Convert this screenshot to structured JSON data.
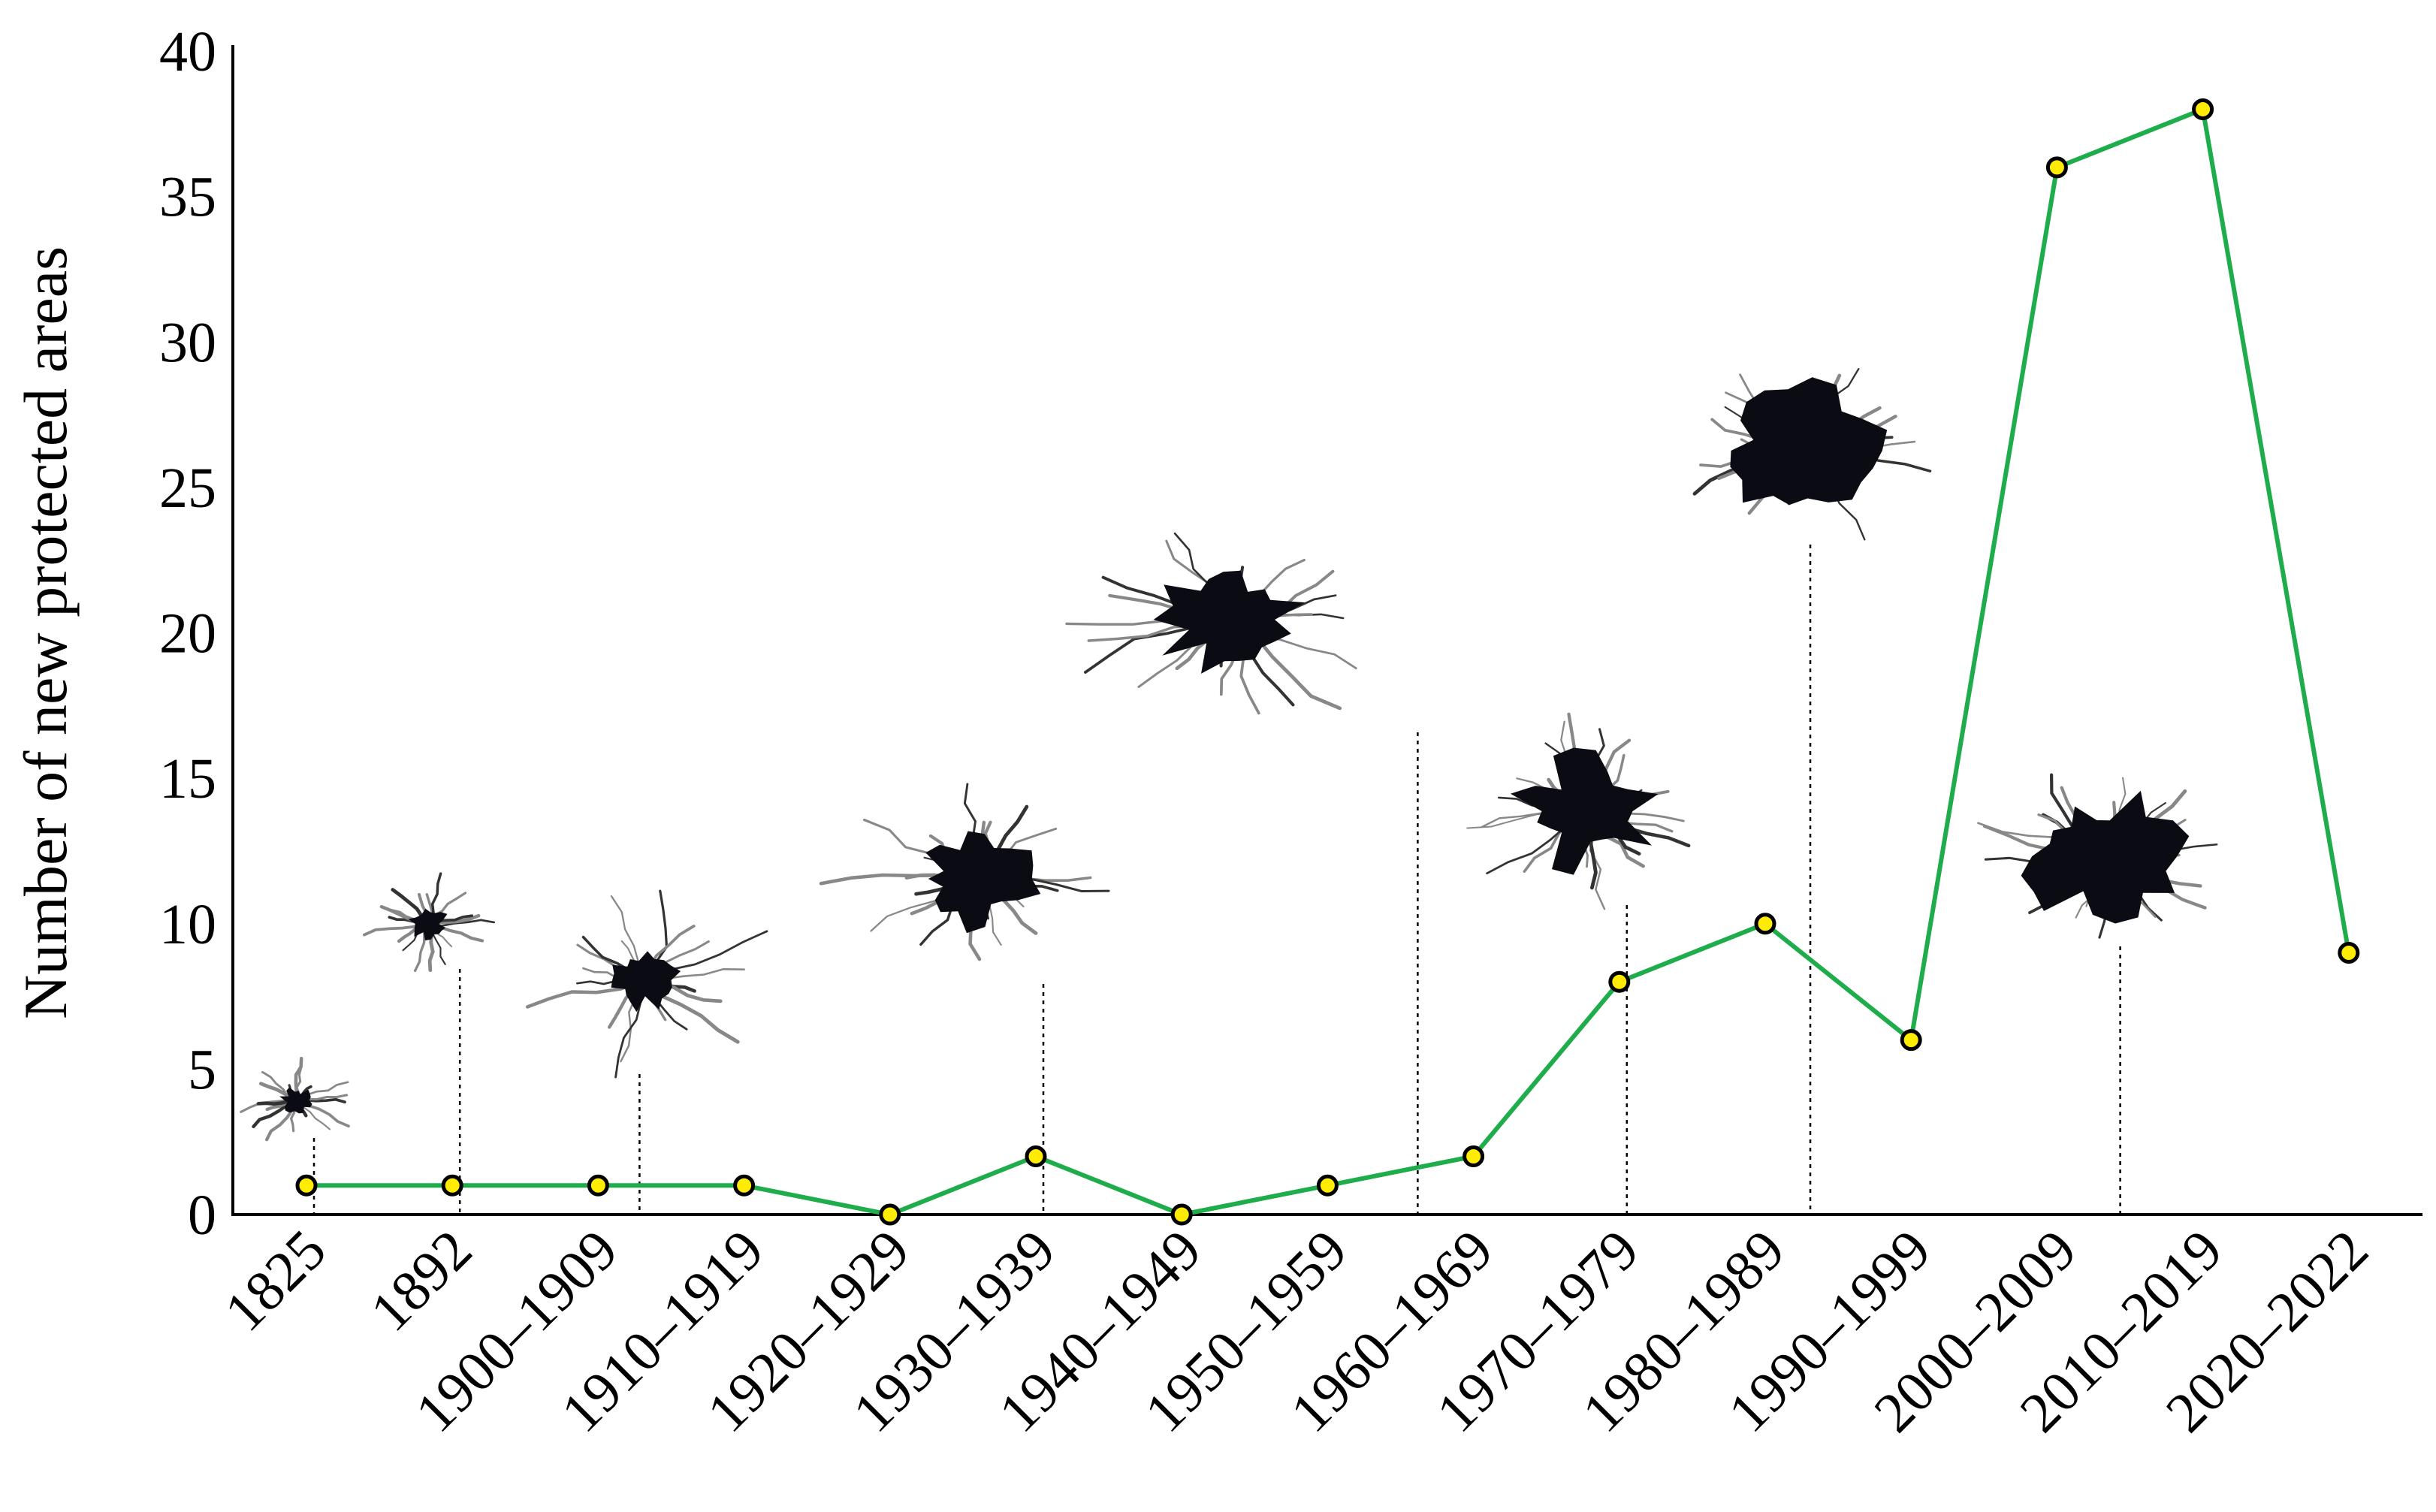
{
  "chart_data": {
    "type": "line",
    "title": "",
    "xlabel": "",
    "ylabel": "Number of new protected areas",
    "categories": [
      "1825",
      "1892",
      "1900–1909",
      "1910–1919",
      "1920–1929",
      "1930–1939",
      "1940–1949",
      "1950–1959",
      "1960–1969",
      "1970–1979",
      "1980–1989",
      "1990–1999",
      "2000–2009",
      "2010–2019",
      "2020–2022"
    ],
    "series": [
      {
        "values": [
          1,
          1,
          1,
          1,
          0,
          2,
          0,
          1,
          2,
          8,
          10,
          6,
          36,
          38,
          9
        ]
      }
    ],
    "ylim": [
      0,
      40
    ],
    "yticks": [
      "0",
      "5",
      "10",
      "15",
      "20",
      "25",
      "30",
      "35",
      "40"
    ],
    "grid": false,
    "legend": "none",
    "colors": {
      "line": "#1fad4b",
      "marker_fill": "#ffec00",
      "marker_edge": "#000000",
      "axis": "#000000"
    },
    "inset_images": [
      {
        "name": "urban-footprint-1825",
        "anchor_category": "1825"
      },
      {
        "name": "urban-footprint-1892",
        "anchor_category": "1892"
      },
      {
        "name": "urban-footprint-1900s",
        "anchor_category": "1900–1909"
      },
      {
        "name": "urban-footprint-1930s",
        "anchor_category": "1930–1939"
      },
      {
        "name": "urban-footprint-1950s",
        "anchor_category": "1950–1959"
      },
      {
        "name": "urban-footprint-1970s",
        "anchor_category": "1970–1979"
      },
      {
        "name": "urban-footprint-1980s",
        "anchor_category": "1980–1989"
      },
      {
        "name": "urban-footprint-2000s",
        "anchor_category": "2010–2019"
      }
    ]
  }
}
